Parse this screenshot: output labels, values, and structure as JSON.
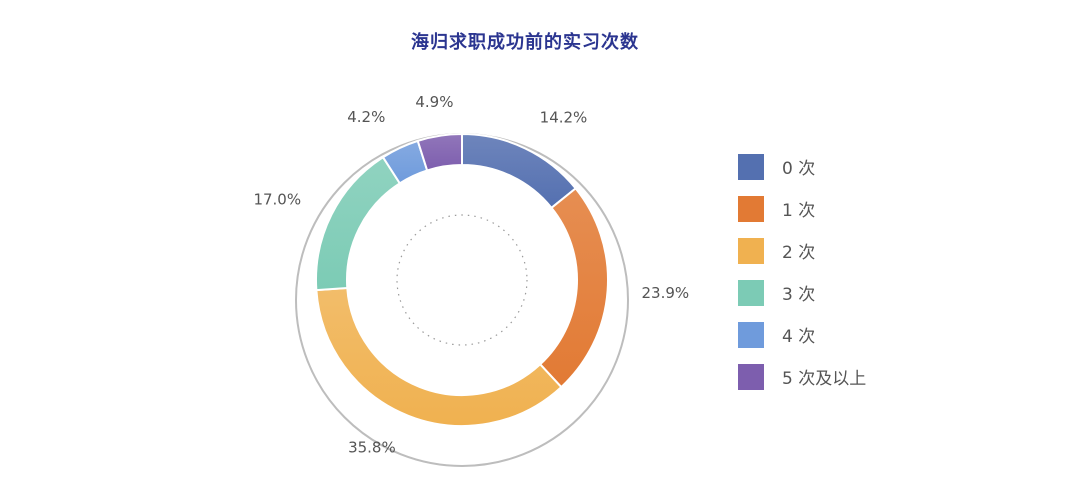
{
  "chart_data": {
    "type": "pie",
    "title": "海归求职成功前的实习次数",
    "categories": [
      "0 次",
      "1 次",
      "2 次",
      "3 次",
      "4 次",
      "5 次及以上"
    ],
    "values": [
      14.2,
      23.9,
      35.8,
      17.0,
      4.2,
      4.9
    ],
    "value_labels": [
      "14.2%",
      "23.9%",
      "35.8%",
      "17.0%",
      "4.2%",
      "4.9%"
    ],
    "colors": [
      "#5470b0",
      "#e27a34",
      "#f0b150",
      "#7ccbb5",
      "#6f9bdc",
      "#7d5eae"
    ],
    "legend_position": "right"
  }
}
